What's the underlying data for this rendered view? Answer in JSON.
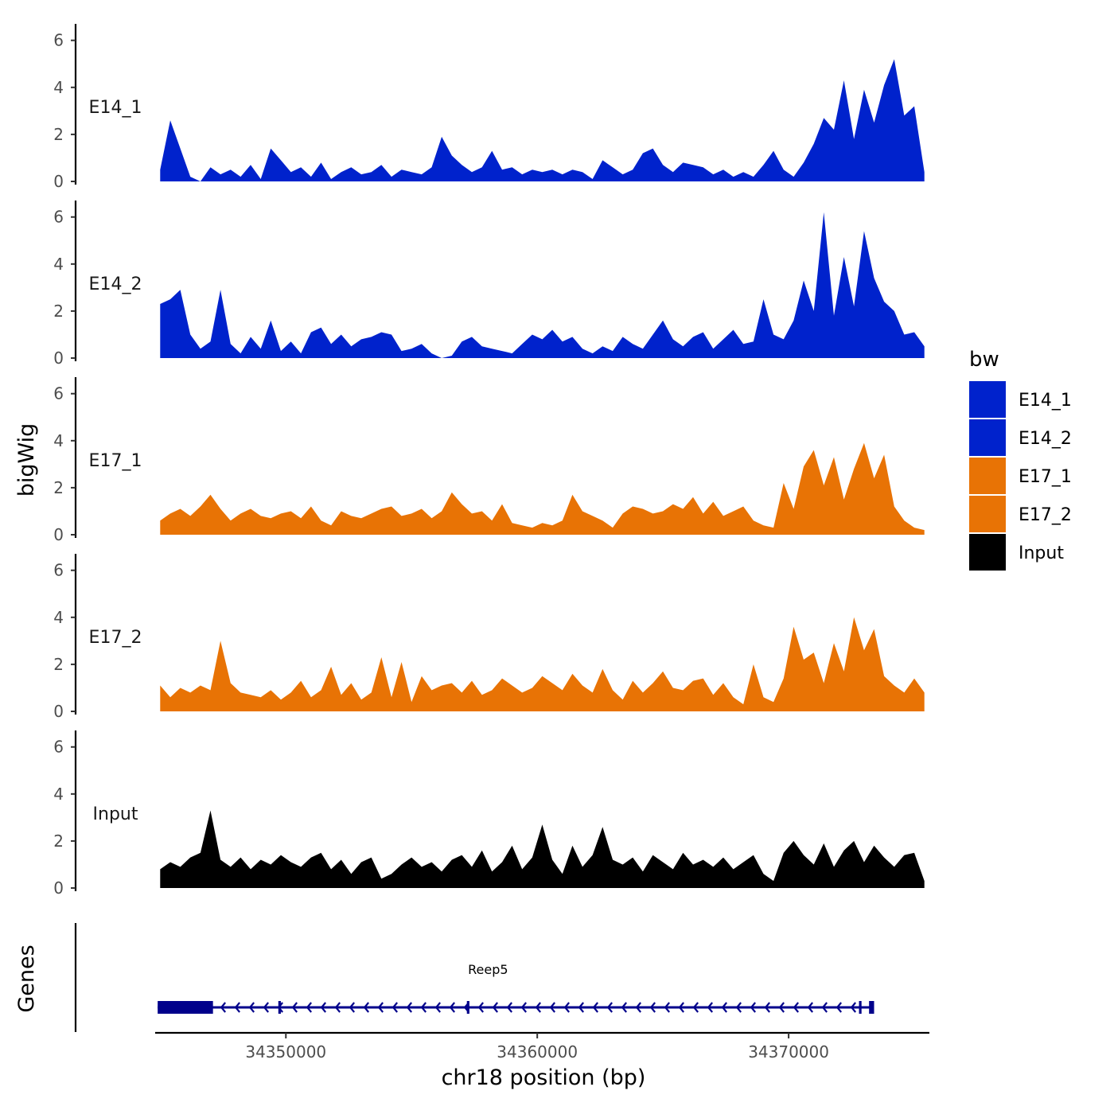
{
  "chart_data": {
    "type": "area",
    "y_axis_title": "bigWig",
    "x_axis_title": "chr18 position (bp)",
    "xlim": [
      34344800,
      34375600
    ],
    "ylim": [
      0,
      6.6
    ],
    "y_ticks": [
      0,
      2,
      4,
      6
    ],
    "x_ticks": [
      34350000,
      34360000,
      34370000
    ],
    "x_tick_labels": [
      "34350000",
      "34360000",
      "34370000"
    ],
    "legend": {
      "title": "bw",
      "position": "right",
      "entries": [
        {
          "name": "E14_1",
          "color": "#0022CC"
        },
        {
          "name": "E14_2",
          "color": "#0022CC"
        },
        {
          "name": "E17_1",
          "color": "#E87305"
        },
        {
          "name": "E17_2",
          "color": "#E87305"
        },
        {
          "name": "Input",
          "color": "#000000"
        }
      ]
    },
    "x": [
      34345000,
      34345400,
      34345800,
      34346200,
      34346600,
      34347000,
      34347400,
      34347800,
      34348200,
      34348600,
      34349000,
      34349400,
      34349800,
      34350200,
      34350600,
      34351000,
      34351400,
      34351800,
      34352200,
      34352600,
      34353000,
      34353400,
      34353800,
      34354200,
      34354600,
      34355000,
      34355400,
      34355800,
      34356200,
      34356600,
      34357000,
      34357400,
      34357800,
      34358200,
      34358600,
      34359000,
      34359400,
      34359800,
      34360200,
      34360600,
      34361000,
      34361400,
      34361800,
      34362200,
      34362600,
      34363000,
      34363400,
      34363800,
      34364200,
      34364600,
      34365000,
      34365400,
      34365800,
      34366200,
      34366600,
      34367000,
      34367400,
      34367800,
      34368200,
      34368600,
      34369000,
      34369400,
      34369800,
      34370200,
      34370600,
      34371000,
      34371400,
      34371800,
      34372200,
      34372600,
      34373000,
      34373400,
      34373800,
      34374200,
      34374600,
      34375000,
      34375400
    ],
    "series": [
      {
        "name": "E14_1",
        "color": "#0022CC",
        "values": [
          0.5,
          2.6,
          1.4,
          0.2,
          0,
          0.6,
          0.3,
          0.5,
          0.2,
          0.7,
          0.1,
          1.4,
          0.9,
          0.4,
          0.6,
          0.2,
          0.8,
          0.1,
          0.4,
          0.6,
          0.3,
          0.4,
          0.7,
          0.2,
          0.5,
          0.4,
          0.3,
          0.6,
          1.9,
          1.1,
          0.7,
          0.4,
          0.6,
          1.3,
          0.5,
          0.6,
          0.3,
          0.5,
          0.4,
          0.5,
          0.3,
          0.5,
          0.4,
          0.1,
          0.9,
          0.6,
          0.3,
          0.5,
          1.2,
          1.4,
          0.7,
          0.4,
          0.8,
          0.7,
          0.6,
          0.3,
          0.5,
          0.2,
          0.4,
          0.2,
          0.7,
          1.3,
          0.5,
          0.2,
          0.8,
          1.6,
          2.7,
          2.2,
          4.3,
          1.8,
          3.9,
          2.5,
          4.1,
          5.2,
          2.8,
          3.2,
          0.4
        ]
      },
      {
        "name": "E14_2",
        "color": "#0022CC",
        "values": [
          2.3,
          2.5,
          2.9,
          1.0,
          0.4,
          0.7,
          2.9,
          0.6,
          0.2,
          0.9,
          0.4,
          1.6,
          0.3,
          0.7,
          0.2,
          1.1,
          1.3,
          0.6,
          1.0,
          0.5,
          0.8,
          0.9,
          1.1,
          1.0,
          0.3,
          0.4,
          0.6,
          0.2,
          0.0,
          0.1,
          0.7,
          0.9,
          0.5,
          0.4,
          0.3,
          0.2,
          0.6,
          1.0,
          0.8,
          1.2,
          0.7,
          0.9,
          0.4,
          0.2,
          0.5,
          0.3,
          0.9,
          0.6,
          0.4,
          1.0,
          1.6,
          0.8,
          0.5,
          0.9,
          1.1,
          0.4,
          0.8,
          1.2,
          0.6,
          0.7,
          2.5,
          1.0,
          0.8,
          1.6,
          3.3,
          2.0,
          6.2,
          1.8,
          4.3,
          2.2,
          5.4,
          3.4,
          2.4,
          2.0,
          1.0,
          1.1,
          0.5
        ]
      },
      {
        "name": "E17_1",
        "color": "#E87305",
        "values": [
          0.6,
          0.9,
          1.1,
          0.8,
          1.2,
          1.7,
          1.1,
          0.6,
          0.9,
          1.1,
          0.8,
          0.7,
          0.9,
          1.0,
          0.7,
          1.2,
          0.6,
          0.4,
          1.0,
          0.8,
          0.7,
          0.9,
          1.1,
          1.2,
          0.8,
          0.9,
          1.1,
          0.7,
          1.0,
          1.8,
          1.3,
          0.9,
          1.0,
          0.6,
          1.3,
          0.5,
          0.4,
          0.3,
          0.5,
          0.4,
          0.6,
          1.7,
          1.0,
          0.8,
          0.6,
          0.3,
          0.9,
          1.2,
          1.1,
          0.9,
          1.0,
          1.3,
          1.1,
          1.6,
          0.9,
          1.4,
          0.8,
          1.0,
          1.2,
          0.6,
          0.4,
          0.3,
          2.2,
          1.1,
          2.9,
          3.6,
          2.1,
          3.3,
          1.5,
          2.8,
          3.9,
          2.4,
          3.4,
          1.2,
          0.6,
          0.3,
          0.2
        ]
      },
      {
        "name": "E17_2",
        "color": "#E87305",
        "values": [
          1.1,
          0.6,
          1.0,
          0.8,
          1.1,
          0.9,
          3.0,
          1.2,
          0.8,
          0.7,
          0.6,
          0.9,
          0.5,
          0.8,
          1.3,
          0.6,
          0.9,
          1.9,
          0.7,
          1.2,
          0.5,
          0.8,
          2.3,
          0.6,
          2.1,
          0.4,
          1.5,
          0.9,
          1.1,
          1.2,
          0.8,
          1.3,
          0.7,
          0.9,
          1.4,
          1.1,
          0.8,
          1.0,
          1.5,
          1.2,
          0.9,
          1.6,
          1.1,
          0.8,
          1.8,
          0.9,
          0.5,
          1.3,
          0.8,
          1.2,
          1.7,
          1.0,
          0.9,
          1.3,
          1.4,
          0.7,
          1.2,
          0.6,
          0.3,
          2.0,
          0.6,
          0.4,
          1.4,
          3.6,
          2.2,
          2.5,
          1.2,
          2.9,
          1.7,
          4.0,
          2.6,
          3.5,
          1.5,
          1.1,
          0.8,
          1.4,
          0.8
        ]
      },
      {
        "name": "Input",
        "color": "#000000",
        "values": [
          0.8,
          1.1,
          0.9,
          1.3,
          1.5,
          3.3,
          1.2,
          0.9,
          1.3,
          0.8,
          1.2,
          1.0,
          1.4,
          1.1,
          0.9,
          1.3,
          1.5,
          0.8,
          1.2,
          0.6,
          1.1,
          1.3,
          0.4,
          0.6,
          1.0,
          1.3,
          0.9,
          1.1,
          0.7,
          1.2,
          1.4,
          0.9,
          1.6,
          0.7,
          1.1,
          1.8,
          0.8,
          1.3,
          2.7,
          1.2,
          0.6,
          1.8,
          0.9,
          1.4,
          2.6,
          1.2,
          1.0,
          1.3,
          0.7,
          1.4,
          1.1,
          0.8,
          1.5,
          1.0,
          1.2,
          0.9,
          1.3,
          0.8,
          1.1,
          1.4,
          0.6,
          0.3,
          1.5,
          2.0,
          1.4,
          1.0,
          1.9,
          0.9,
          1.6,
          2.0,
          1.1,
          1.8,
          1.3,
          0.9,
          1.4,
          1.5,
          0.3
        ]
      }
    ],
    "gene_track": {
      "title": "Genes",
      "genes": [
        {
          "name": "Reep5",
          "strand": "-",
          "start": 34344900,
          "end": 34373400,
          "exons": [
            [
              34344900,
              34347100
            ],
            [
              34349700,
              34349800
            ],
            [
              34357200,
              34357300
            ],
            [
              34372800,
              34372900
            ],
            [
              34373200,
              34373400
            ]
          ]
        }
      ]
    }
  }
}
